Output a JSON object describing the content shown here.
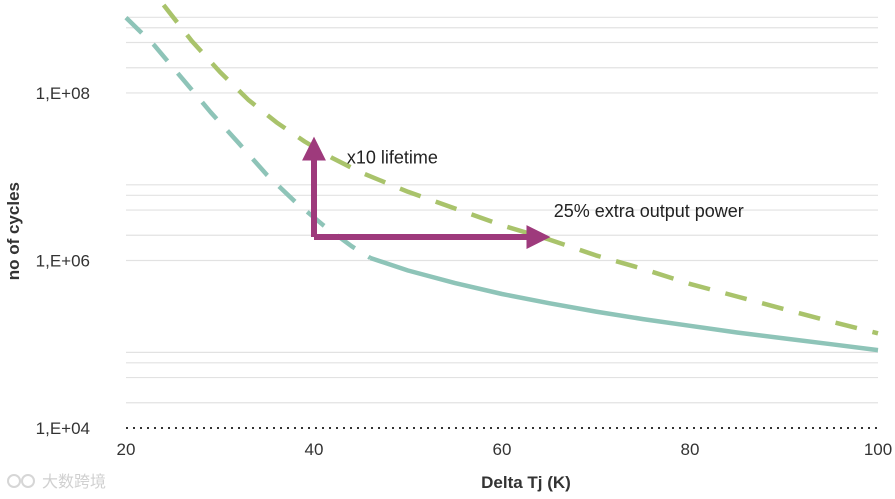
{
  "chart_data": {
    "type": "line",
    "title": "",
    "xlabel": "Delta Tj (K)",
    "ylabel": "no of cycles",
    "xlim": [
      20,
      100
    ],
    "ylim_log10": [
      4,
      9.05
    ],
    "x_ticks": [
      "20",
      "40",
      "60",
      "80",
      "100"
    ],
    "y_ticks": [
      {
        "log": 4,
        "label": "1,E+04"
      },
      {
        "log": 6,
        "label": "1,E+06"
      },
      {
        "log": 8,
        "label": "1,E+08"
      }
    ],
    "series": [
      {
        "name": "teal",
        "color": "#8ec4b8",
        "segments": [
          {
            "style": "dashed",
            "points": [
              [
                20,
                8.9
              ],
              [
                23,
                8.57
              ],
              [
                26,
                8.17
              ],
              [
                29,
                7.77
              ],
              [
                32,
                7.4
              ],
              [
                35,
                7.02
              ],
              [
                38,
                6.7
              ],
              [
                41,
                6.42
              ],
              [
                44,
                6.17
              ],
              [
                46,
                6.03
              ]
            ]
          },
          {
            "style": "solid",
            "points": [
              [
                46,
                6.03
              ],
              [
                50,
                5.88
              ],
              [
                55,
                5.73
              ],
              [
                60,
                5.6
              ],
              [
                65,
                5.49
              ],
              [
                70,
                5.39
              ],
              [
                75,
                5.3
              ],
              [
                80,
                5.22
              ],
              [
                85,
                5.14
              ],
              [
                90,
                5.07
              ],
              [
                95,
                5.0
              ],
              [
                100,
                4.93
              ]
            ]
          }
        ]
      },
      {
        "name": "green",
        "color": "#a9c36b",
        "segments": [
          {
            "style": "dashed",
            "points": [
              [
                24,
                9.05
              ],
              [
                27,
                8.62
              ],
              [
                30,
                8.25
              ],
              [
                33,
                7.92
              ],
              [
                36,
                7.65
              ],
              [
                39,
                7.42
              ],
              [
                42,
                7.22
              ],
              [
                45,
                7.05
              ],
              [
                50,
                6.82
              ],
              [
                55,
                6.62
              ],
              [
                60,
                6.42
              ],
              [
                65,
                6.25
              ],
              [
                70,
                6.06
              ],
              [
                75,
                5.9
              ],
              [
                80,
                5.72
              ],
              [
                85,
                5.57
              ],
              [
                90,
                5.42
              ],
              [
                95,
                5.27
              ],
              [
                100,
                5.13
              ]
            ]
          }
        ]
      }
    ],
    "arrows": [
      {
        "name": "lifetime",
        "color": "#9e3a7c",
        "from": [
          40,
          6.28
        ],
        "to": [
          40,
          7.35
        ],
        "label": "x10 lifetime",
        "label_at": [
          43.5,
          7.16
        ]
      },
      {
        "name": "power",
        "color": "#9e3a7c",
        "from": [
          40,
          6.28
        ],
        "to": [
          64,
          6.28
        ],
        "label": "25% extra output power",
        "label_at": [
          65.5,
          6.52
        ]
      }
    ],
    "watermark": "大数跨境"
  }
}
